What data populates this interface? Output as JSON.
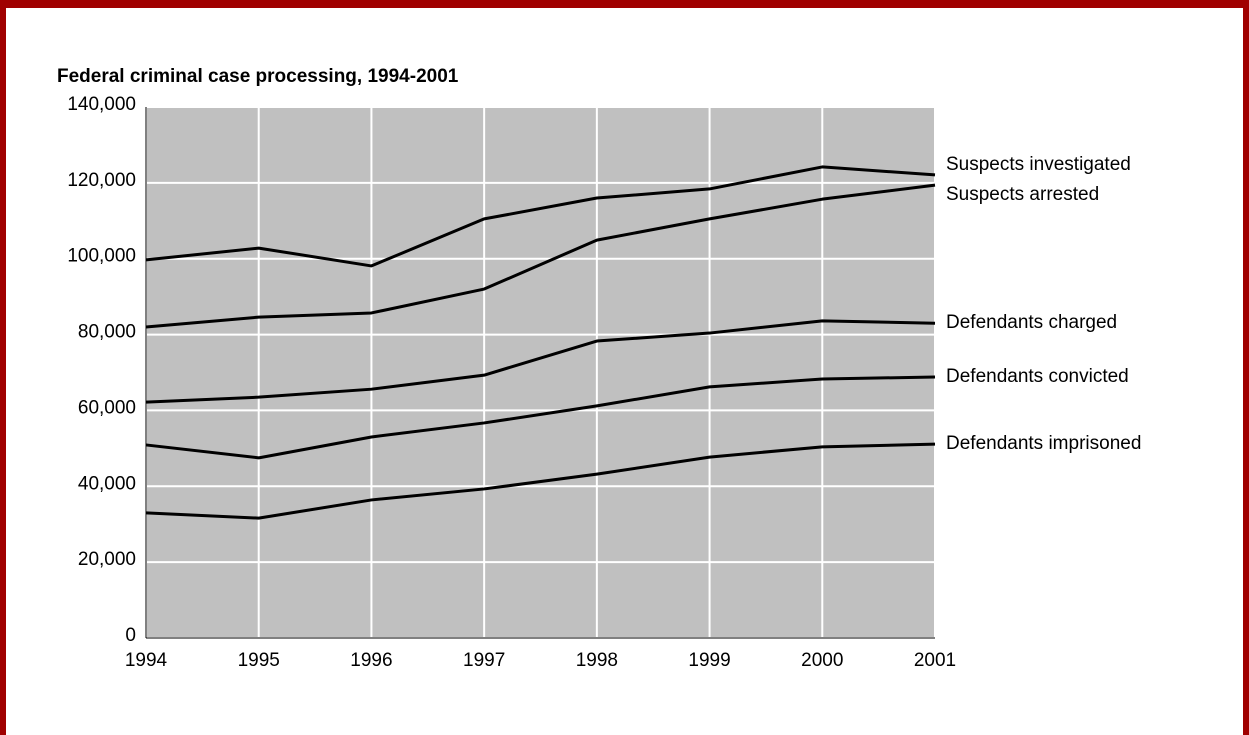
{
  "chart_data": {
    "type": "line",
    "title": "Federal criminal case processing, 1994-2001",
    "x": [
      1994,
      1995,
      1996,
      1997,
      1998,
      1999,
      2000,
      2001
    ],
    "xlim": [
      1994,
      2001
    ],
    "xticks": [
      1994,
      1995,
      1996,
      1997,
      1998,
      1999,
      2000,
      2001
    ],
    "ylim": [
      0,
      140000
    ],
    "yticks": [
      0,
      {
        "value": 20000,
        "label": "20,000"
      },
      {
        "value": 40000,
        "label": "40,000"
      },
      {
        "value": 60000,
        "label": "60,000"
      },
      {
        "value": 80000,
        "label": "80,000"
      },
      {
        "value": 100000,
        "label": "100,000"
      },
      {
        "value": 120000,
        "label": "120,000"
      },
      {
        "value": 140000,
        "label": "140,000"
      }
    ],
    "grid": true,
    "series": [
      {
        "name": "Suspects investigated",
        "color": "#000000",
        "values": [
          99700,
          102800,
          98100,
          110500,
          116000,
          118400,
          124200,
          122100
        ]
      },
      {
        "name": "Suspects arrested",
        "color": "#000000",
        "values": [
          82000,
          84600,
          85700,
          92000,
          104900,
          110500,
          115700,
          119400
        ]
      },
      {
        "name": "Defendants charged",
        "color": "#000000",
        "values": [
          62200,
          63500,
          65600,
          69300,
          78300,
          80400,
          83600,
          83000
        ]
      },
      {
        "name": "Defendants convicted",
        "color": "#000000",
        "values": [
          50900,
          47500,
          53000,
          56700,
          61200,
          66200,
          68300,
          68800
        ]
      },
      {
        "name": "Defendants imprisoned",
        "color": "#000000",
        "values": [
          33000,
          31600,
          36400,
          39300,
          43200,
          47700,
          50400,
          51100
        ]
      }
    ]
  }
}
